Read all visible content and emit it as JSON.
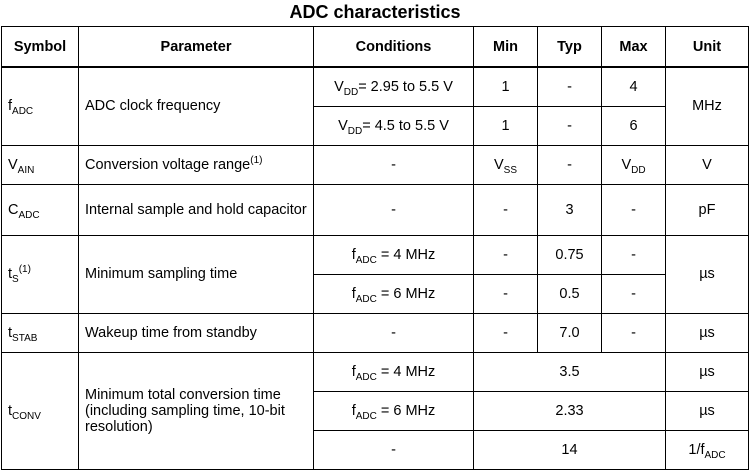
{
  "title": "ADC characteristics",
  "headers": [
    "Symbol",
    "Parameter",
    "Conditions",
    "Min",
    "Typ",
    "Max",
    "Unit"
  ],
  "rows": {
    "fadc": {
      "symbol": {
        "main": "f",
        "sub": "ADC"
      },
      "parameter": "ADC clock frequency",
      "unit": "MHz",
      "sub1": {
        "cond_main": "V",
        "cond_sub": "DD",
        "cond_rest": "= 2.95 to 5.5 V",
        "min": "1",
        "typ": "-",
        "max": "4"
      },
      "sub2": {
        "cond_main": "V",
        "cond_sub": "DD",
        "cond_rest": "= 4.5 to 5.5 V",
        "min": "1",
        "typ": "-",
        "max": "6"
      }
    },
    "vain": {
      "symbol": {
        "main": "V",
        "sub": "AIN"
      },
      "parameter": "Conversion voltage range",
      "parameter_sup": "(1)",
      "conditions": "-",
      "min": {
        "main": "V",
        "sub": "SS"
      },
      "typ": "-",
      "max": {
        "main": "V",
        "sub": "DD"
      },
      "unit": "V"
    },
    "cadc": {
      "symbol": {
        "main": "C",
        "sub": "ADC"
      },
      "parameter": "Internal sample and hold capacitor",
      "conditions": "-",
      "min": "-",
      "typ": "3",
      "max": "-",
      "unit": "pF"
    },
    "ts": {
      "symbol": {
        "main": "t",
        "sub": "S",
        "sup": "(1)"
      },
      "parameter": "Minimum sampling time",
      "unit": "µs",
      "sub1": {
        "cond_main": "f",
        "cond_sub": "ADC",
        "cond_rest": " = 4 MHz",
        "min": "-",
        "typ": "0.75",
        "max": "-"
      },
      "sub2": {
        "cond_main": "f",
        "cond_sub": "ADC",
        "cond_rest": " = 6 MHz",
        "min": "-",
        "typ": "0.5",
        "max": "-"
      }
    },
    "tstab": {
      "symbol": {
        "main": "t",
        "sub": "STAB"
      },
      "parameter": "Wakeup time from standby",
      "conditions": "-",
      "min": "-",
      "typ": "7.0",
      "max": "-",
      "unit": "µs"
    },
    "tconv": {
      "symbol": {
        "main": "t",
        "sub": "CONV"
      },
      "parameter": "Minimum total conversion time (including sampling time, 10-bit resolution)",
      "sub1": {
        "cond_main": "f",
        "cond_sub": "ADC",
        "cond_rest": " = 4 MHz",
        "value": "3.5",
        "unit": "µs"
      },
      "sub2": {
        "cond_main": "f",
        "cond_sub": "ADC",
        "cond_rest": " = 6 MHz",
        "value": "2.33",
        "unit": "µs"
      },
      "sub3": {
        "conditions": "-",
        "value": "14",
        "unit_main": "1/f",
        "unit_sub": "ADC"
      }
    }
  }
}
